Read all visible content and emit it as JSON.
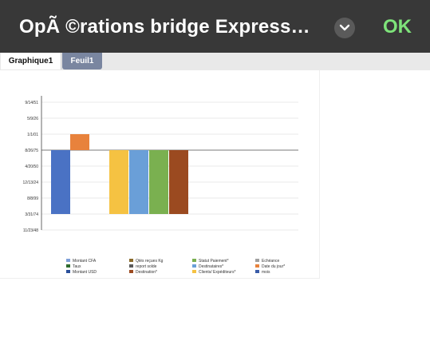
{
  "header": {
    "title": "OpÃ ©rations bridge Express…",
    "ok_label": "OK",
    "chevron_icon": "chevron-down-icon"
  },
  "tabs": [
    {
      "label": "Graphique1",
      "active": true
    },
    {
      "label": "Feuil1",
      "active": false
    }
  ],
  "chart_data": {
    "type": "bar",
    "ytick_labels": [
      "9/14/51",
      "5/9/26",
      "1/1/01",
      "8/26/75",
      "4/20/50",
      "12/13/24",
      "8/8/99",
      "3/31/74",
      "11/23/48"
    ],
    "bars": [
      {
        "series": "Montant USD",
        "value": -0.8,
        "color": "#4a72c4"
      },
      {
        "series": "Date du jour*",
        "value": 0.2,
        "color": "#e8823c"
      },
      {
        "series": "Clients/ Expéditeurs*",
        "value": -0.8,
        "color": "#f5c242"
      },
      {
        "series": "Destinataires*",
        "value": -0.8,
        "color": "#6a9fd8"
      },
      {
        "series": "Statut Paiement*",
        "value": -0.8,
        "color": "#7ab050"
      },
      {
        "series": "Destination*",
        "value": -0.8,
        "color": "#9b4a20"
      }
    ],
    "legend": [
      {
        "label": "Montant CFA",
        "color": "#7fa0d8"
      },
      {
        "label": "Qtés reçues Kg",
        "color": "#8a6a2a"
      },
      {
        "label": "Statut Paiement*",
        "color": "#7ab050"
      },
      {
        "label": "Echéance",
        "color": "#a0a0a0"
      },
      {
        "label": "Taux",
        "color": "#2e6b2e"
      },
      {
        "label": "report solde",
        "color": "#5a5a5a"
      },
      {
        "label": "Destinataires*",
        "color": "#6a9fd8"
      },
      {
        "label": "Date du jour*",
        "color": "#e8823c"
      },
      {
        "label": "Montant USD",
        "color": "#2a4f9a"
      },
      {
        "label": "Destination*",
        "color": "#9b4a20"
      },
      {
        "label": "Clients/ Expéditeurs*",
        "color": "#f5c242"
      },
      {
        "label": "mois",
        "color": "#3a5ca8"
      }
    ],
    "legend_position": "bottom",
    "grid": true
  }
}
